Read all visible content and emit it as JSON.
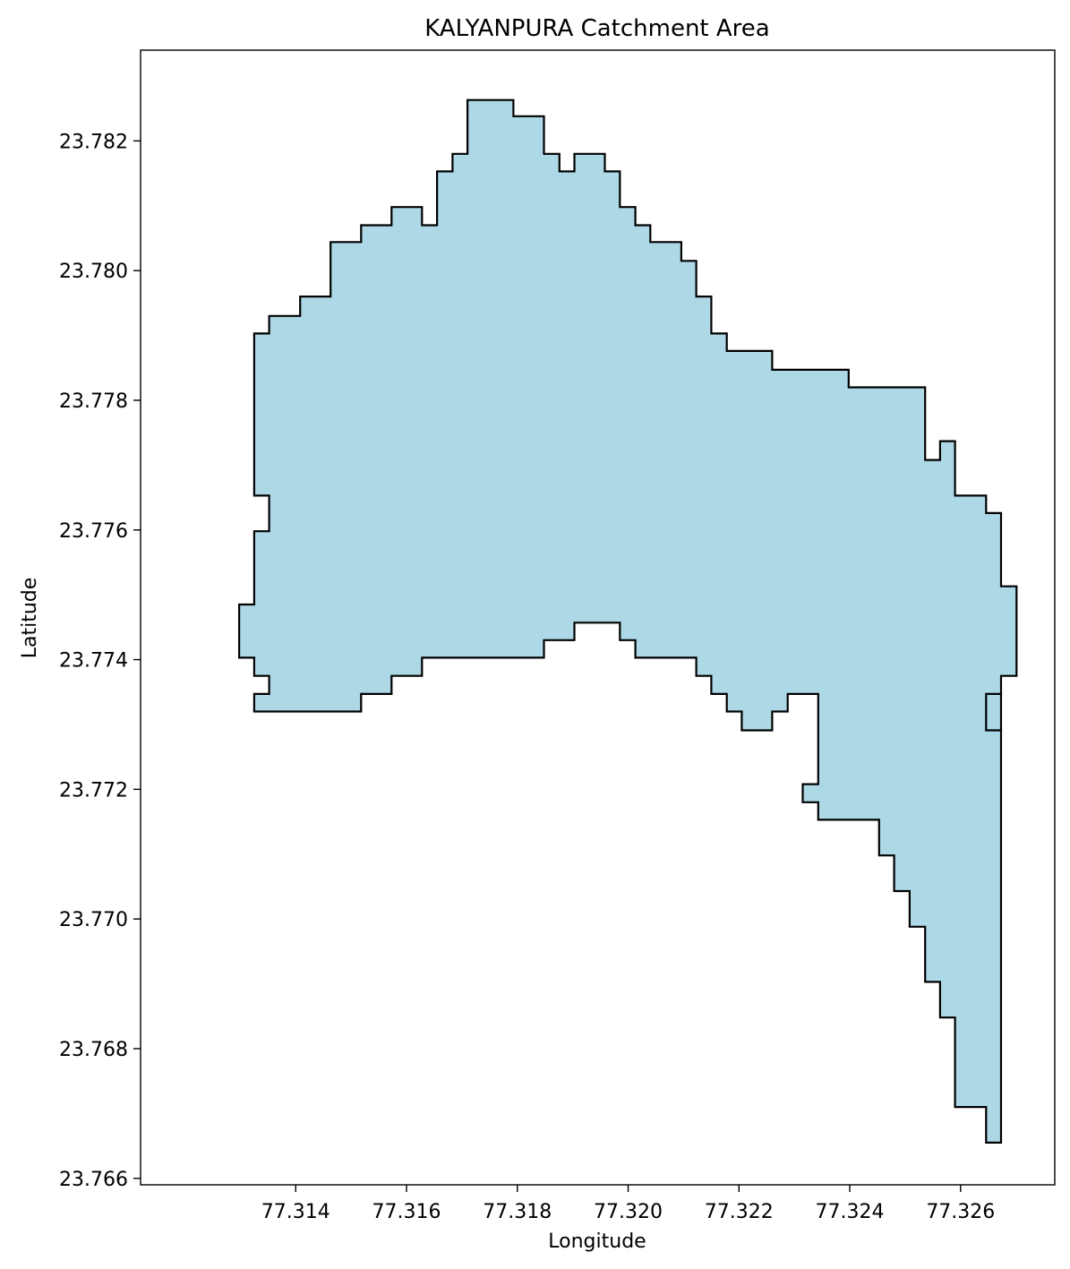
{
  "chart_data": {
    "type": "area",
    "title": "KALYANPURA Catchment Area",
    "xlabel": "Longitude",
    "ylabel": "Latitude",
    "xlim": [
      77.3112,
      77.3277
    ],
    "ylim": [
      23.7659,
      23.7834
    ],
    "x_ticks": [
      "77.314",
      "77.316",
      "77.318",
      "77.320",
      "77.322",
      "77.324",
      "77.326"
    ],
    "y_ticks": [
      "23.766",
      "23.768",
      "23.770",
      "23.772",
      "23.774",
      "23.776",
      "23.778",
      "23.780",
      "23.782"
    ],
    "grid": false,
    "fill_color": "#add8e6",
    "edge_color": "#000000",
    "boundary": [
      [
        77.3171,
        23.78263
      ],
      [
        77.31793,
        23.78263
      ],
      [
        77.31793,
        23.78238
      ],
      [
        77.31848,
        23.78238
      ],
      [
        77.31848,
        23.7818
      ],
      [
        77.31876,
        23.7818
      ],
      [
        77.31876,
        23.78153
      ],
      [
        77.31903,
        23.78153
      ],
      [
        77.31903,
        23.7818
      ],
      [
        77.31958,
        23.7818
      ],
      [
        77.31958,
        23.78153
      ],
      [
        77.31985,
        23.78153
      ],
      [
        77.31985,
        23.78098
      ],
      [
        77.32013,
        23.78098
      ],
      [
        77.32013,
        23.7807
      ],
      [
        77.3204,
        23.7807
      ],
      [
        77.3204,
        23.78044
      ],
      [
        77.32096,
        23.78044
      ],
      [
        77.32096,
        23.78015
      ],
      [
        77.32123,
        23.78015
      ],
      [
        77.32123,
        23.7796
      ],
      [
        77.3215,
        23.7796
      ],
      [
        77.3215,
        23.77903
      ],
      [
        77.32178,
        23.77903
      ],
      [
        77.32178,
        23.77876
      ],
      [
        77.3226,
        23.77876
      ],
      [
        77.3226,
        23.77847
      ],
      [
        77.32398,
        23.77847
      ],
      [
        77.32398,
        23.7782
      ],
      [
        77.32536,
        23.7782
      ],
      [
        77.32536,
        23.77708
      ],
      [
        77.32563,
        23.77708
      ],
      [
        77.32563,
        23.77737
      ],
      [
        77.3259,
        23.77737
      ],
      [
        77.3259,
        23.77653
      ],
      [
        77.32646,
        23.77653
      ],
      [
        77.32646,
        23.77626
      ],
      [
        77.32673,
        23.77626
      ],
      [
        77.32673,
        23.77513
      ],
      [
        77.32701,
        23.77513
      ],
      [
        77.32701,
        23.77375
      ],
      [
        77.32673,
        23.77375
      ],
      [
        77.32673,
        23.77291
      ],
      [
        77.32646,
        23.77291
      ],
      [
        77.32646,
        23.77347
      ],
      [
        77.32673,
        23.77347
      ],
      [
        77.32673,
        23.76655
      ],
      [
        77.32646,
        23.76655
      ],
      [
        77.32646,
        23.7671
      ],
      [
        77.3259,
        23.7671
      ],
      [
        77.3259,
        23.76848
      ],
      [
        77.32563,
        23.76848
      ],
      [
        77.32563,
        23.76903
      ],
      [
        77.32536,
        23.76903
      ],
      [
        77.32536,
        23.76988
      ],
      [
        77.32508,
        23.76988
      ],
      [
        77.32508,
        23.77043
      ],
      [
        77.3248,
        23.77043
      ],
      [
        77.3248,
        23.77098
      ],
      [
        77.32453,
        23.77098
      ],
      [
        77.32453,
        23.77153
      ],
      [
        77.32343,
        23.77153
      ],
      [
        77.32343,
        23.7718
      ],
      [
        77.32315,
        23.7718
      ],
      [
        77.32315,
        23.77208
      ],
      [
        77.32343,
        23.77208
      ],
      [
        77.32343,
        23.77347
      ],
      [
        77.32288,
        23.77347
      ],
      [
        77.32288,
        23.7732
      ],
      [
        77.3226,
        23.7732
      ],
      [
        77.3226,
        23.77291
      ],
      [
        77.32205,
        23.77291
      ],
      [
        77.32205,
        23.7732
      ],
      [
        77.32178,
        23.7732
      ],
      [
        77.32178,
        23.77347
      ],
      [
        77.3215,
        23.77347
      ],
      [
        77.3215,
        23.77375
      ],
      [
        77.32123,
        23.77375
      ],
      [
        77.32123,
        23.77403
      ],
      [
        77.32013,
        23.77403
      ],
      [
        77.32013,
        23.7743
      ],
      [
        77.31985,
        23.7743
      ],
      [
        77.31985,
        23.77457
      ],
      [
        77.31903,
        23.77457
      ],
      [
        77.31903,
        23.7743
      ],
      [
        77.31848,
        23.7743
      ],
      [
        77.31848,
        23.77403
      ],
      [
        77.31628,
        23.77403
      ],
      [
        77.31628,
        23.77375
      ],
      [
        77.31573,
        23.77375
      ],
      [
        77.31573,
        23.77347
      ],
      [
        77.31518,
        23.77347
      ],
      [
        77.31518,
        23.7732
      ],
      [
        77.31325,
        23.7732
      ],
      [
        77.31325,
        23.77347
      ],
      [
        77.31352,
        23.77347
      ],
      [
        77.31352,
        23.77375
      ],
      [
        77.31325,
        23.77375
      ],
      [
        77.31325,
        23.77403
      ],
      [
        77.31298,
        23.77403
      ],
      [
        77.31298,
        23.77485
      ],
      [
        77.31325,
        23.77485
      ],
      [
        77.31325,
        23.77598
      ],
      [
        77.31352,
        23.77598
      ],
      [
        77.31352,
        23.77653
      ],
      [
        77.31325,
        23.77653
      ],
      [
        77.31325,
        23.77903
      ],
      [
        77.31352,
        23.77903
      ],
      [
        77.31352,
        23.7793
      ],
      [
        77.31408,
        23.7793
      ],
      [
        77.31408,
        23.7796
      ],
      [
        77.31463,
        23.7796
      ],
      [
        77.31463,
        23.78044
      ],
      [
        77.31518,
        23.78044
      ],
      [
        77.31518,
        23.7807
      ],
      [
        77.31573,
        23.7807
      ],
      [
        77.31573,
        23.78098
      ],
      [
        77.31628,
        23.78098
      ],
      [
        77.31628,
        23.7807
      ],
      [
        77.31655,
        23.7807
      ],
      [
        77.31655,
        23.78153
      ],
      [
        77.31683,
        23.78153
      ],
      [
        77.31683,
        23.7818
      ],
      [
        77.3171,
        23.7818
      ]
    ]
  }
}
